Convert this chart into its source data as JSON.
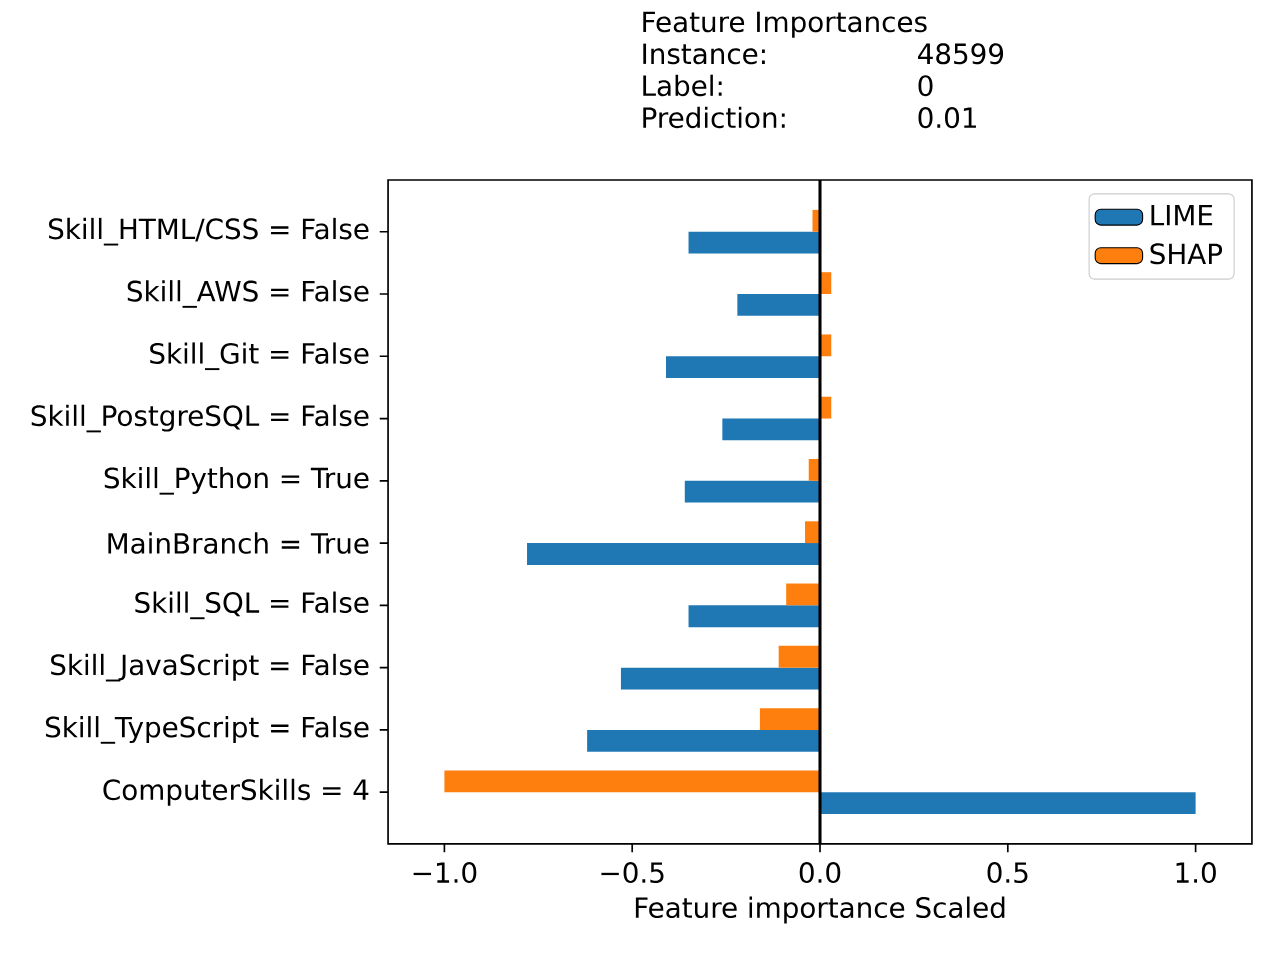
{
  "chart_data": {
    "type": "bar",
    "orientation": "horizontal",
    "title": "Feature Importances",
    "annotations": [
      "Instance:",
      "48599",
      "Label:",
      "0",
      "Prediction:",
      "0.01"
    ],
    "xlabel": "Feature importance Scaled",
    "categories": [
      "Skill_HTML/CSS = False",
      "Skill_AWS = False",
      "Skill_Git = False",
      "Skill_PostgreSQL = False",
      "Skill_Python = True",
      "MainBranch = True",
      "Skill_SQL = False",
      "Skill_JavaScript = False",
      "Skill_TypeScript = False",
      "ComputerSkills = 4"
    ],
    "series": [
      {
        "name": "LIME",
        "color": "#1f77b4",
        "values": [
          -0.35,
          -0.22,
          -0.41,
          -0.26,
          -0.36,
          -0.78,
          -0.35,
          -0.53,
          -0.62,
          1.0
        ]
      },
      {
        "name": "SHAP",
        "color": "#ff7f0e",
        "values": [
          -0.02,
          0.03,
          0.03,
          0.03,
          -0.03,
          -0.04,
          -0.09,
          -0.11,
          -0.16,
          -1.0
        ]
      }
    ],
    "xlim": [
      -1.15,
      1.15
    ],
    "xticks": [
      {
        "value": -1.0,
        "label": "−1.0"
      },
      {
        "value": -0.5,
        "label": "−0.5"
      },
      {
        "value": 0.0,
        "label": "0.0"
      },
      {
        "value": 0.5,
        "label": "0.5"
      },
      {
        "value": 1.0,
        "label": "1.0"
      }
    ],
    "ref_lines": [
      {
        "axis": "x",
        "value": 0,
        "color": "#000000"
      }
    ],
    "legend": "top right"
  }
}
